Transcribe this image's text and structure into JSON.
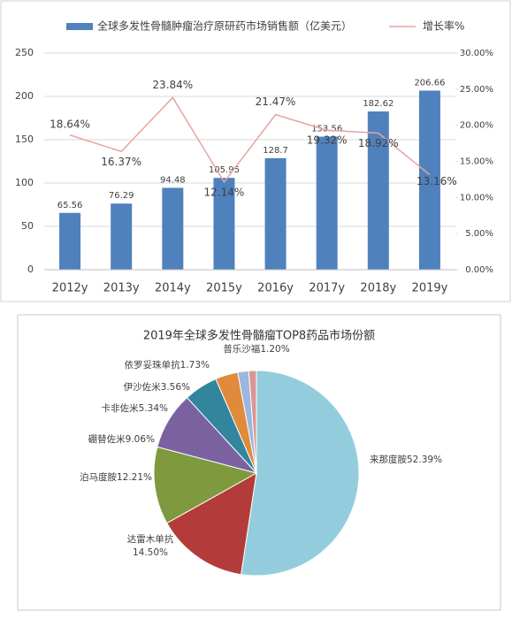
{
  "chart_data": [
    {
      "type": "bar-line",
      "categories": [
        "2012y",
        "2013y",
        "2014y",
        "2015y",
        "2016y",
        "2017y",
        "2018y",
        "2019y"
      ],
      "series": [
        {
          "name": "全球多发性骨髓肿瘤治疗原研药市场销售额（亿美元）",
          "color": "#4f81bd",
          "type": "bar",
          "values": [
            65.56,
            76.29,
            94.48,
            105.95,
            128.7,
            153.56,
            182.62,
            206.66
          ]
        },
        {
          "name": "增长率%",
          "color": "#e6a3a3",
          "type": "line",
          "axis": "y2",
          "values": [
            18.64,
            16.37,
            23.84,
            12.14,
            21.47,
            19.32,
            18.92,
            13.16
          ],
          "value_labels": [
            "18.64%",
            "16.37%",
            "23.84%",
            "12.14%",
            "21.47%",
            "19.32%",
            "18.92%",
            "13.16%"
          ]
        }
      ],
      "ylim": [
        0,
        250
      ],
      "yticks": [
        0,
        50,
        100,
        150,
        200,
        250
      ],
      "y2lim": [
        0,
        30
      ],
      "y2ticks": [
        {
          "value": 0,
          "label": "0.00%"
        },
        {
          "value": 5,
          "label": "5.00%"
        },
        {
          "value": 10,
          "label": "10.00%"
        },
        {
          "value": 15,
          "label": "15.00%"
        },
        {
          "value": 20,
          "label": "20.00%"
        },
        {
          "value": 25,
          "label": "25.00%"
        },
        {
          "value": 30,
          "label": "30.00%"
        }
      ],
      "grid": true,
      "legend": "top"
    },
    {
      "type": "pie",
      "title": "2019年全球多发性骨髓瘤TOP8药品市场份额",
      "categories": [
        "来那度胺",
        "达雷木单抗",
        "泊马度胺",
        "硼替佐米",
        "卡非佐米",
        "伊沙佐米",
        "依罗妥珠单抗",
        "普乐沙福"
      ],
      "values": [
        52.39,
        14.5,
        12.21,
        9.06,
        5.34,
        3.56,
        1.73,
        1.2
      ],
      "value_labels": [
        "52.39%",
        "14.50%",
        "12.21%",
        "9.06%",
        "5.34%",
        "3.56%",
        "1.73%",
        "1.20%"
      ],
      "colors": [
        "#93cddd",
        "#b33c3a",
        "#7f9a3e",
        "#7a62a0",
        "#31859c",
        "#e08a3c",
        "#9bb7dd",
        "#d99694"
      ]
    }
  ]
}
